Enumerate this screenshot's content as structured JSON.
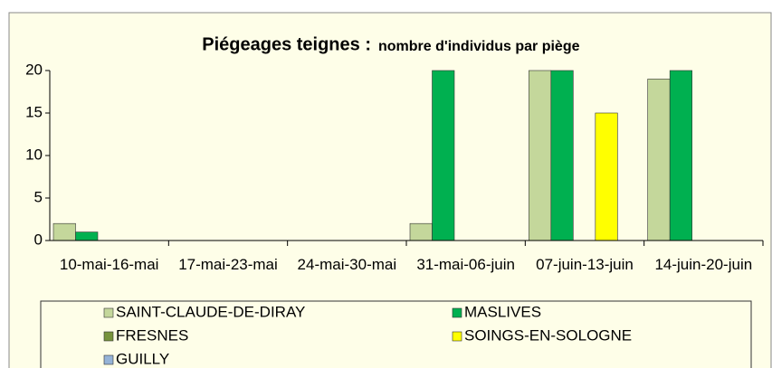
{
  "chart_data": {
    "type": "bar",
    "title": "Piégeages teignes :",
    "subtitle": "nombre d'individus par piège",
    "categories": [
      "10-mai-16-mai",
      "17-mai-23-mai",
      "24-mai-30-mai",
      "31-mai-06-juin",
      "07-juin-13-juin",
      "14-juin-20-juin"
    ],
    "series": [
      {
        "name": "SAINT-CLAUDE-DE-DIRAY",
        "color": "#c4d79b",
        "values": [
          2,
          0,
          0,
          2,
          20,
          19
        ]
      },
      {
        "name": "MASLIVES",
        "color": "#00b050",
        "values": [
          1,
          0,
          0,
          20,
          20,
          20
        ]
      },
      {
        "name": "FRESNES",
        "color": "#77933c",
        "values": [
          0,
          0,
          0,
          0,
          0,
          0
        ]
      },
      {
        "name": "SOINGS-EN-SOLOGNE",
        "color": "#ffff00",
        "values": [
          0,
          0,
          0,
          0,
          15,
          0
        ]
      },
      {
        "name": "GUILLY",
        "color": "#95b3d7",
        "values": [
          0,
          0,
          0,
          0,
          0,
          0
        ]
      }
    ],
    "ylim": [
      0,
      20
    ],
    "yticks": [
      0,
      5,
      10,
      15,
      20
    ],
    "grid": false,
    "legend": "bottom"
  }
}
